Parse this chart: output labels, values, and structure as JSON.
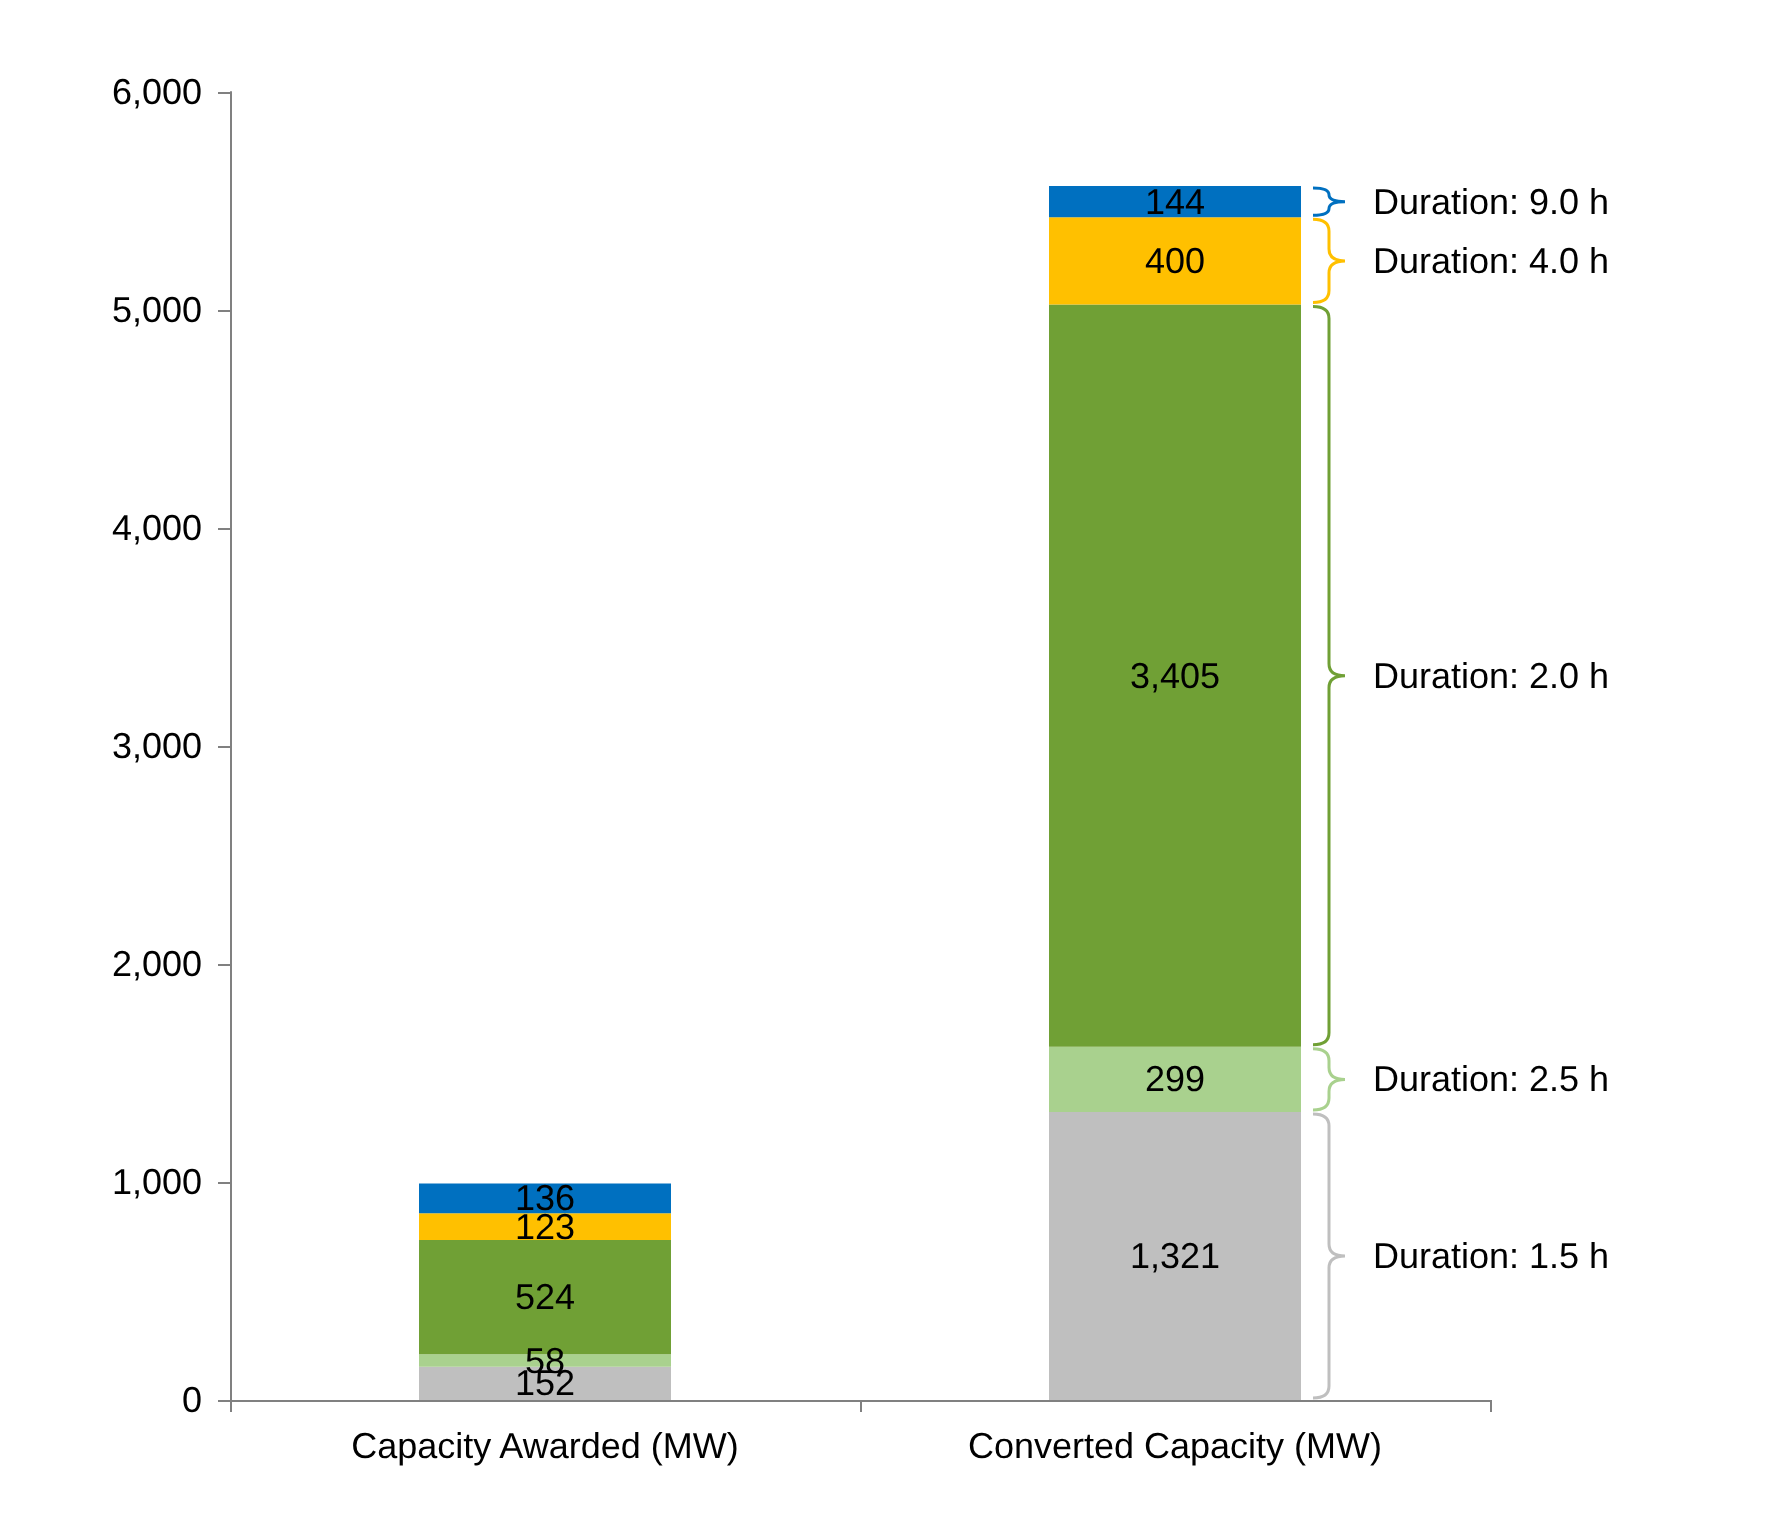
{
  "chart_data": {
    "type": "bar",
    "stacked": true,
    "legend": "right",
    "grid": false,
    "categories": [
      "Capacity Awarded (MW)",
      "Converted Capacity (MW)"
    ],
    "series": [
      {
        "name": "Duration: 1.5 h",
        "color": "#bfbfbf",
        "values": [
          152,
          1321
        ],
        "value_labels": [
          "152",
          "1,321"
        ]
      },
      {
        "name": "Duration: 2.5 h",
        "color": "#a9d18e",
        "values": [
          58,
          299
        ],
        "value_labels": [
          "58",
          "299"
        ]
      },
      {
        "name": "Duration: 2.0 h",
        "color": "#70a035",
        "values": [
          524,
          3405
        ],
        "value_labels": [
          "524",
          "3,405"
        ]
      },
      {
        "name": "Duration: 4.0 h",
        "color": "#ffc000",
        "values": [
          123,
          400
        ],
        "value_labels": [
          "123",
          "400"
        ]
      },
      {
        "name": "Duration: 9.0 h",
        "color": "#0070c0",
        "values": [
          136,
          144
        ],
        "value_labels": [
          "136",
          "144"
        ]
      }
    ],
    "ylim": [
      0,
      6000
    ],
    "yticks": [
      {
        "value": 0,
        "label": "0"
      },
      {
        "value": 1000,
        "label": "1,000"
      },
      {
        "value": 2000,
        "label": "2,000"
      },
      {
        "value": 3000,
        "label": "3,000"
      },
      {
        "value": 4000,
        "label": "4,000"
      },
      {
        "value": 5000,
        "label": "5,000"
      },
      {
        "value": 6000,
        "label": "6,000"
      }
    ]
  }
}
